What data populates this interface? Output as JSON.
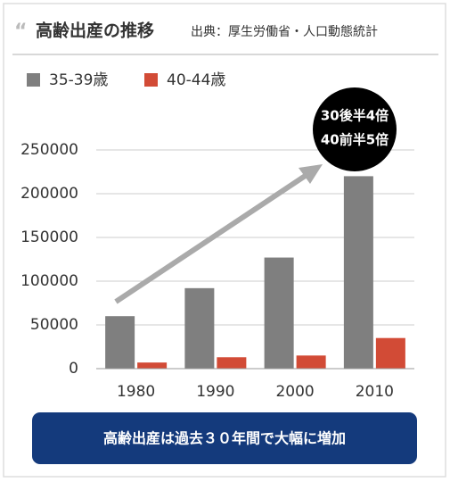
{
  "chart_data": {
    "type": "bar",
    "title": "高齢出産の推移",
    "subtitle": "出典：厚生労働省・人口動態統計",
    "categories": [
      "1980",
      "1990",
      "2000",
      "2010"
    ],
    "series": [
      {
        "name": "35-39歳",
        "color": "#7f7f7f",
        "values": [
          60000,
          92000,
          127000,
          220000
        ]
      },
      {
        "name": "40-44歳",
        "color": "#d24b36",
        "values": [
          7000,
          13000,
          15000,
          35000
        ]
      }
    ],
    "ylim": [
      0,
      250000
    ],
    "yticks": [
      0,
      50000,
      100000,
      150000,
      200000,
      250000
    ],
    "grid": true,
    "annotations": [
      "30後半4倍",
      "40前半5倍"
    ],
    "footer": "高齢出産は過去３０年間で大幅に増加"
  }
}
